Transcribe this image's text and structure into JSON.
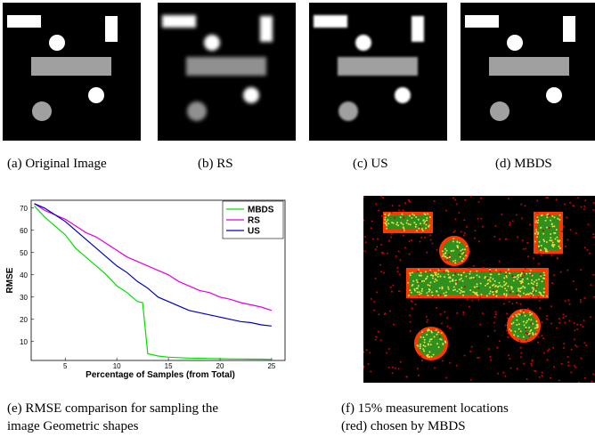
{
  "captions": {
    "a": "(a) Original Image",
    "b": "(b) RS",
    "c": "(c) US",
    "d": "(d) MBDS",
    "e": [
      "(e) RMSE comparison for sampling the",
      "image Geometric shapes"
    ],
    "f": [
      "(f) 15% measurement locations",
      "(red) chosen by MBDS"
    ]
  },
  "chart_data": {
    "type": "line",
    "xlabel": "Percentage of Samples (from Total)",
    "ylabel": "RMSE",
    "x": [
      2,
      3,
      4,
      5,
      6,
      7,
      8,
      9,
      10,
      11,
      12,
      12.5,
      13,
      14,
      15,
      16,
      17,
      18,
      19,
      20,
      21,
      22,
      23,
      24,
      25
    ],
    "xlim": [
      1.7,
      26.3
    ],
    "xticks": [
      5,
      10,
      15,
      20,
      25
    ],
    "ylim": [
      1.5,
      73.5
    ],
    "yticks": [
      10,
      20,
      30,
      40,
      50,
      60,
      70
    ],
    "legend": "upper right",
    "series": [
      {
        "name": "MBDS",
        "color": "#00e000",
        "values": [
          71,
          66,
          62,
          58,
          52,
          48,
          44,
          40,
          35,
          32,
          28,
          27.5,
          4.5,
          3.5,
          3,
          2.8,
          2.6,
          2.5,
          2.4,
          2.3,
          2.2,
          2.2,
          2.1,
          2.1,
          2
        ]
      },
      {
        "name": "RS",
        "color": "#e000e0",
        "values": [
          72,
          69,
          67,
          65,
          62,
          59,
          57,
          54,
          51,
          48,
          46,
          45,
          44,
          42,
          40,
          37,
          35,
          33,
          32,
          30,
          29,
          27.5,
          26.5,
          25.5,
          24
        ]
      },
      {
        "name": "US",
        "color": "#0000c0",
        "values": [
          72,
          70,
          67,
          64,
          60,
          56,
          52,
          48,
          44,
          41,
          37,
          35.5,
          34,
          30,
          28,
          26,
          24,
          23,
          22,
          21,
          20,
          19,
          18.5,
          17.5,
          17
        ]
      }
    ]
  }
}
